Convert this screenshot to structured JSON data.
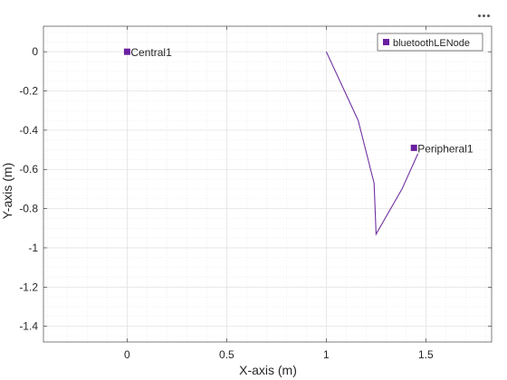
{
  "toolbar": {
    "menu_icon": "ellipsis-icon"
  },
  "colors": {
    "axes_bg": "#ffffff",
    "grid_major": "#e3e3e3",
    "grid_minor": "#eeeeee",
    "axis_line": "#262626",
    "tick_text": "#262626",
    "series": "#7030a0",
    "marker": "#6a1fa0"
  },
  "chart_data": {
    "type": "scatter",
    "title": "",
    "xlabel": "X-axis (m)",
    "ylabel": "Y-axis (m)",
    "xlim": [
      -0.42,
      1.83
    ],
    "ylim": [
      -1.48,
      0.13
    ],
    "xticks": [
      0,
      0.5,
      1,
      1.5
    ],
    "xtick_labels": [
      "0",
      "0.5",
      "1",
      "1.5"
    ],
    "yticks": [
      0,
      -0.2,
      -0.4,
      -0.6,
      -0.8,
      -1,
      -1.2,
      -1.4
    ],
    "ytick_labels": [
      "0",
      "-0.2",
      "-0.4",
      "-0.6",
      "-0.8",
      "-1",
      "-1.2",
      "-1.4"
    ],
    "grid": true,
    "minor_grid": true,
    "legend": {
      "position": "top-right",
      "entries": [
        "bluetoothLENode"
      ]
    },
    "nodes": [
      {
        "label": "Central1",
        "x": 0.0,
        "y": 0.0
      },
      {
        "label": "Peripheral1",
        "x": 1.44,
        "y": -0.49
      }
    ],
    "path": {
      "x": [
        1.0,
        1.16,
        1.24,
        1.25,
        1.38,
        1.46
      ],
      "y": [
        0.0,
        -0.35,
        -0.67,
        -0.93,
        -0.7,
        -0.52
      ]
    }
  }
}
